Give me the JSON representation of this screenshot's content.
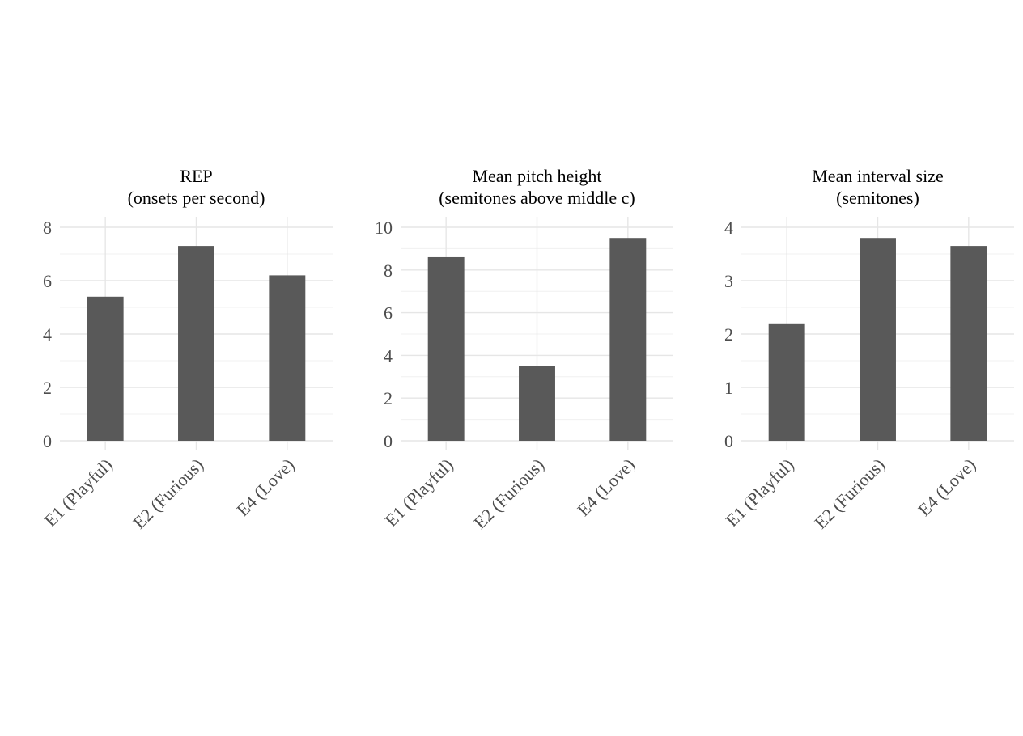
{
  "chart_data": [
    {
      "type": "bar",
      "title": "REP\n(onsets per second)",
      "categories": [
        "E1 (Playful)",
        "E2 (Furious)",
        "E4 (Love)"
      ],
      "values": [
        5.4,
        7.3,
        6.2
      ],
      "ylim": [
        0,
        8
      ],
      "yticks": [
        0,
        2,
        4,
        6,
        8
      ],
      "xlabel": "",
      "ylabel": "",
      "grid": true,
      "bar_color": "#595959"
    },
    {
      "type": "bar",
      "title": "Mean pitch height\n(semitones above middle c)",
      "categories": [
        "E1 (Playful)",
        "E2 (Furious)",
        "E4 (Love)"
      ],
      "values": [
        8.6,
        3.5,
        9.5
      ],
      "ylim": [
        0,
        10
      ],
      "yticks": [
        0,
        2,
        4,
        6,
        8,
        10
      ],
      "xlabel": "",
      "ylabel": "",
      "grid": true,
      "bar_color": "#595959"
    },
    {
      "type": "bar",
      "title": "Mean interval size\n(semitones)",
      "categories": [
        "E1 (Playful)",
        "E2 (Furious)",
        "E4 (Love)"
      ],
      "values": [
        2.2,
        3.8,
        3.65
      ],
      "ylim": [
        0,
        4
      ],
      "yticks": [
        0,
        1,
        2,
        3,
        4
      ],
      "xlabel": "",
      "ylabel": "",
      "grid": true,
      "bar_color": "#595959"
    }
  ]
}
